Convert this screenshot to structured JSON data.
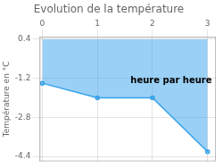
{
  "chart_data": {
    "type": "line",
    "title": "Evolution de la température",
    "y_label": "Température en °C",
    "x": [
      0,
      1,
      2,
      3
    ],
    "values": [
      -1.4,
      -2.0,
      -2.0,
      -4.2
    ],
    "fill_to": 0.4,
    "xlim": [
      -0.05,
      3.15
    ],
    "ylim": [
      -4.6,
      0.5
    ],
    "xticks": [
      0,
      1,
      2,
      3
    ],
    "yticks": [
      0.4,
      -1.2,
      -2.8,
      -4.4
    ],
    "grid": true,
    "annotations": [
      {
        "text": "heure par heure",
        "x": 1.6,
        "y": -1.1
      }
    ]
  }
}
